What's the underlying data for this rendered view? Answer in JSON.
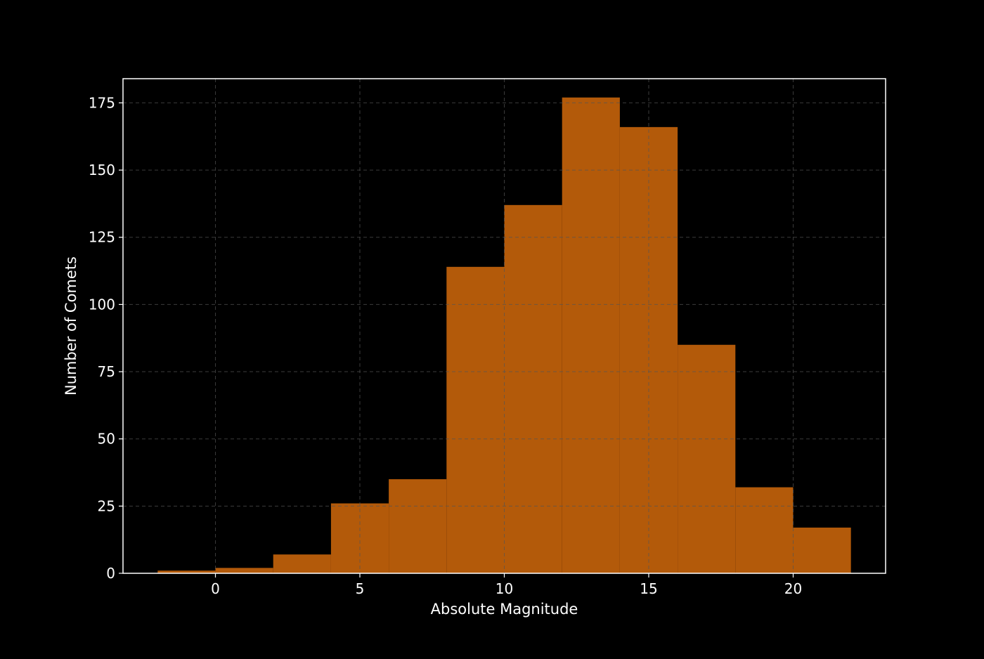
{
  "chart_data": {
    "type": "bar",
    "xlabel": "Absolute Magnitude",
    "ylabel": "Number of Comets",
    "xlim": [
      -3.2,
      23.2
    ],
    "ylim": [
      0,
      184
    ],
    "xticks": [
      0,
      5,
      10,
      15,
      20
    ],
    "yticks": [
      0,
      25,
      50,
      75,
      100,
      125,
      150,
      175
    ],
    "grid": true,
    "bin_edges": [
      -2,
      0,
      2,
      4,
      6,
      8,
      10,
      12,
      14,
      16,
      18,
      20,
      22
    ],
    "counts": [
      1,
      2,
      7,
      26,
      35,
      114,
      137,
      177,
      166,
      85,
      32,
      17
    ],
    "colors": {
      "background": "#000000",
      "bar": "#b35a0a",
      "axes": "#ffffff",
      "grid": "#555555"
    }
  }
}
